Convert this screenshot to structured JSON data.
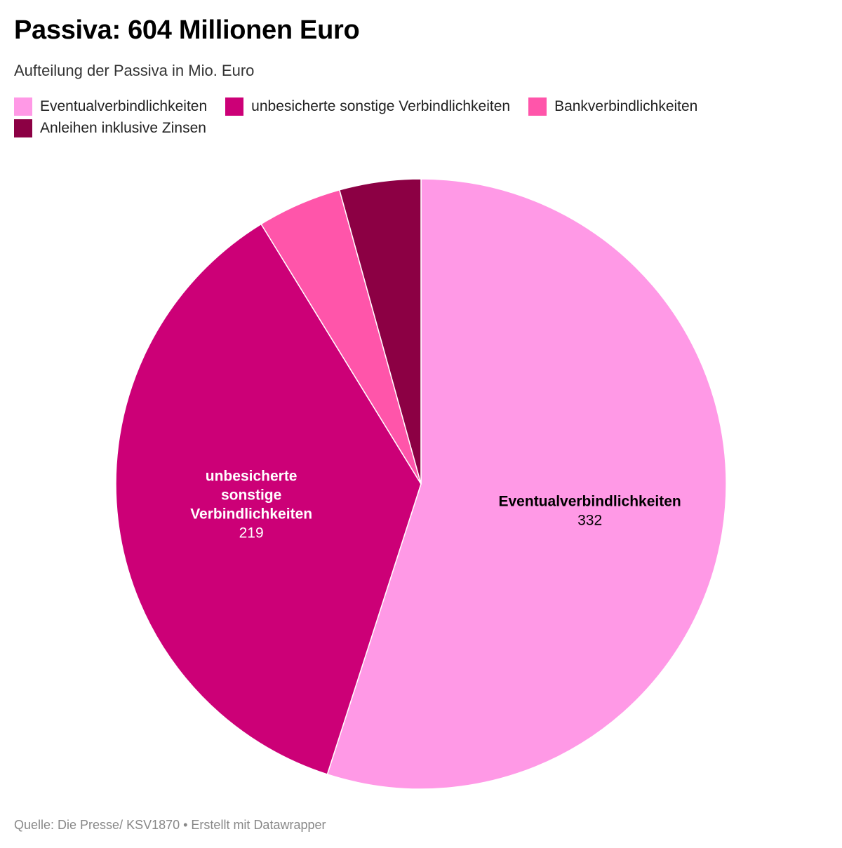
{
  "header": {
    "title": "Passiva: 604 Millionen Euro",
    "subtitle": "Aufteilung der Passiva in Mio. Euro"
  },
  "chart_data": {
    "type": "pie",
    "title": "Passiva: 604 Millionen Euro",
    "subtitle": "Aufteilung der Passiva in Mio. Euro",
    "total": 604,
    "unit": "Mio. Euro",
    "start_angle_deg": 0,
    "direction": "clockwise",
    "legend_position": "top",
    "slices": [
      {
        "name": "Eventualverbindlichkeiten",
        "value": 332,
        "color": "#ff99e6",
        "label_lines": [
          "Eventualverbindlichkeiten"
        ],
        "value_label": "332",
        "label_color": "#000000",
        "show_label": true
      },
      {
        "name": "unbesicherte sonstige Verbindlichkeiten",
        "value": 219,
        "color": "#cc0077",
        "label_lines": [
          "unbesicherte",
          "sonstige",
          "Verbindlichkeiten"
        ],
        "value_label": "219",
        "label_color": "#ffffff",
        "show_label": true
      },
      {
        "name": "Bankverbindlichkeiten",
        "value": 27,
        "color": "#ff55aa",
        "label_lines": [],
        "value_label": "",
        "label_color": "#ffffff",
        "show_label": false
      },
      {
        "name": "Anleihen inklusive Zinsen",
        "value": 26,
        "color": "#8c0044",
        "label_lines": [],
        "value_label": "",
        "label_color": "#ffffff",
        "show_label": false
      }
    ]
  },
  "footer": {
    "source": "Quelle: Die Presse/ KSV1870 • Erstellt mit Datawrapper"
  }
}
